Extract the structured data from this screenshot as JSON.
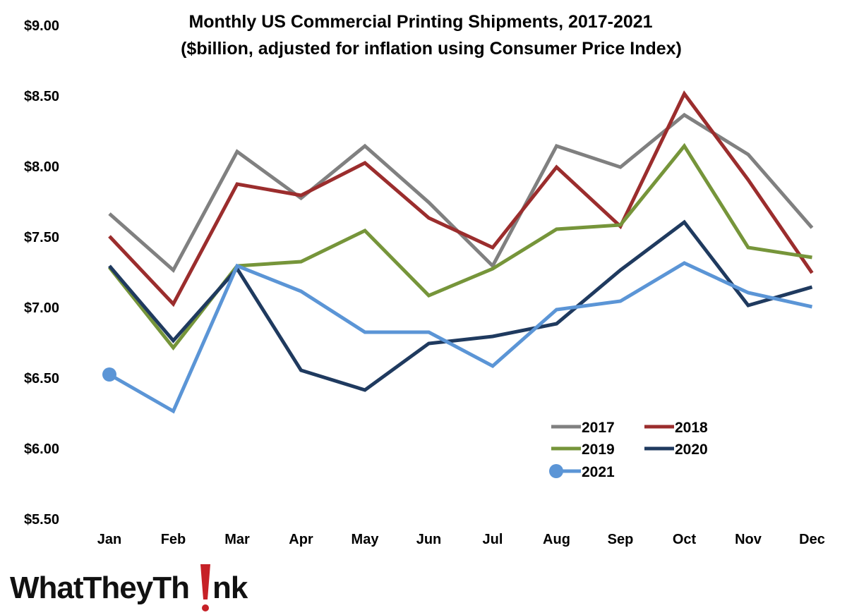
{
  "chart_data": {
    "type": "line",
    "title": "Monthly US Commercial Printing Shipments, 2017-2021",
    "subtitle": "($billion, adjusted for inflation using Consumer Price Index)",
    "categories": [
      "Jan",
      "Feb",
      "Mar",
      "Apr",
      "May",
      "Jun",
      "Jul",
      "Aug",
      "Sep",
      "Oct",
      "Nov",
      "Dec"
    ],
    "ylim": [
      5.5,
      9.0
    ],
    "yticks": [
      5.5,
      6.0,
      6.5,
      7.0,
      7.5,
      8.0,
      8.5,
      9.0
    ],
    "ytick_labels": [
      "$5.50",
      "$6.00",
      "$6.50",
      "$7.00",
      "$7.50",
      "$8.00",
      "$8.50",
      "$9.00"
    ],
    "grid": false,
    "legend_position": "bottom-right",
    "series": [
      {
        "name": "2017",
        "color": "#808080",
        "values": [
          7.66,
          7.26,
          8.1,
          7.77,
          8.14,
          7.74,
          7.29,
          8.14,
          7.99,
          8.36,
          8.08,
          7.56
        ]
      },
      {
        "name": "2018",
        "color": "#9b2d2d",
        "values": [
          7.5,
          7.02,
          7.87,
          7.79,
          8.02,
          7.63,
          7.42,
          7.99,
          7.57,
          8.51,
          7.9,
          7.24
        ]
      },
      {
        "name": "2019",
        "color": "#76953a",
        "values": [
          7.28,
          6.71,
          7.29,
          7.32,
          7.54,
          7.08,
          7.27,
          7.55,
          7.58,
          8.14,
          7.42,
          7.35
        ]
      },
      {
        "name": "2020",
        "color": "#1f3a5f",
        "values": [
          7.29,
          6.76,
          7.27,
          6.55,
          6.41,
          6.74,
          6.79,
          6.88,
          7.26,
          7.6,
          7.01,
          7.14
        ]
      },
      {
        "name": "2021",
        "color": "#5b95d6",
        "start_marker": true,
        "values": [
          6.52,
          6.26,
          7.29,
          7.11,
          6.82,
          6.82,
          6.58,
          6.98,
          7.04,
          7.31,
          7.1,
          7.0
        ]
      }
    ]
  },
  "logo": {
    "text": "WhatTheyThink",
    "accent_color": "#c62127"
  }
}
